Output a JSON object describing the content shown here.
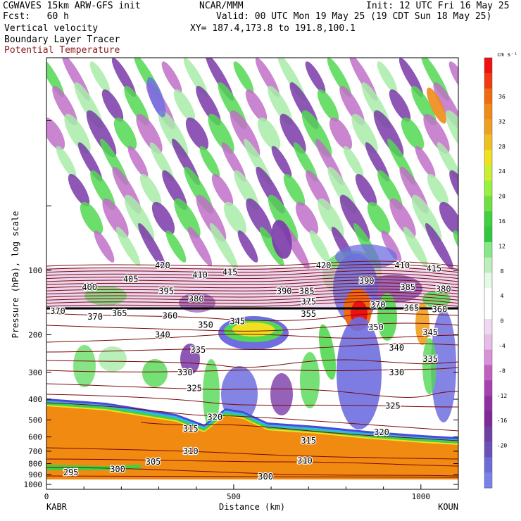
{
  "header": {
    "line1_left": "CGWAVES 15km ARW-GFS init",
    "line1_center": "NCAR/MMM",
    "line1_right": "Init: 12 UTC Fri 16 May 25",
    "line2_left": "Fcst:   60 h",
    "line2_right": "Valid: 00 UTC Mon 19 May 25 (19 CDT Sun 18 May 25)",
    "line3_left": "Vertical velocity",
    "line3_right": "XY= 187.4,173.8 to 191.8,100.1",
    "line4_left": "Boundary Layer Tracer",
    "line5_left": "Potential Temperature"
  },
  "colors": {
    "potential_temperature": "#7a0a0a",
    "theta_title": "#8b1a1a"
  },
  "chart_data": {
    "type": "heatmap",
    "xlabel": "Distance (km)",
    "ylabel": "Pressure (hPa), log scale",
    "x_ticks": [
      "0",
      "500",
      "1000"
    ],
    "x_tick_values": [
      0,
      500,
      1000
    ],
    "xlim": [
      0,
      1100
    ],
    "y_ticks": [
      "100",
      "200",
      "300",
      "400",
      "500",
      "600",
      "700",
      "800",
      "900",
      "1000"
    ],
    "y_tick_values": [
      100,
      200,
      300,
      400,
      500,
      600,
      700,
      800,
      900,
      1000
    ],
    "left_label": "KABR",
    "right_label": "KOUN",
    "colorbar": {
      "unit": "cm s⁻¹",
      "labels": [
        "36",
        "32",
        "28",
        "24",
        "20",
        "16",
        "12",
        "8",
        "4",
        "0",
        "-4",
        "-8",
        "-12",
        "-16",
        "-20"
      ],
      "colors": [
        "#f01010",
        "#f03a10",
        "#f06a10",
        "#f08a18",
        "#f0a020",
        "#f0c020",
        "#f0e020",
        "#c8f030",
        "#98f040",
        "#70e040",
        "#40d040",
        "#30c840",
        "#88e888",
        "#bcefbc",
        "#e6f8e6",
        "#ffffff",
        "#ffffff",
        "#f0d8f0",
        "#e8bce8",
        "#d890d8",
        "#c060c0",
        "#a840b0",
        "#9030a0",
        "#802898",
        "#7040a0",
        "#6a50b8",
        "#6c6cd8",
        "#7a82e8"
      ]
    },
    "contours": {
      "name": "Potential Temperature",
      "levels_shown": [
        295,
        300,
        305,
        310,
        315,
        320,
        325,
        330,
        335,
        340,
        345,
        350,
        355,
        360,
        365,
        370,
        375,
        380,
        385,
        390,
        395,
        400,
        405,
        410,
        415,
        420
      ],
      "labels": [
        {
          "text": "420",
          "x": 310,
          "p": 95
        },
        {
          "text": "420",
          "x": 740,
          "p": 95
        },
        {
          "text": "410",
          "x": 410,
          "p": 105
        },
        {
          "text": "415",
          "x": 490,
          "p": 102
        },
        {
          "text": "410",
          "x": 950,
          "p": 95
        },
        {
          "text": "415",
          "x": 1035,
          "p": 98
        },
        {
          "text": "405",
          "x": 225,
          "p": 110
        },
        {
          "text": "400",
          "x": 115,
          "p": 120
        },
        {
          "text": "395",
          "x": 320,
          "p": 125
        },
        {
          "text": "390",
          "x": 635,
          "p": 125
        },
        {
          "text": "385",
          "x": 695,
          "p": 125
        },
        {
          "text": "390",
          "x": 855,
          "p": 112
        },
        {
          "text": "385",
          "x": 965,
          "p": 120
        },
        {
          "text": "380",
          "x": 400,
          "p": 136
        },
        {
          "text": "380",
          "x": 1060,
          "p": 122
        },
        {
          "text": "375",
          "x": 700,
          "p": 140
        },
        {
          "text": "370",
          "x": 885,
          "p": 145
        },
        {
          "text": "370",
          "x": 30,
          "p": 155
        },
        {
          "text": "370",
          "x": 130,
          "p": 165
        },
        {
          "text": "365",
          "x": 195,
          "p": 159
        },
        {
          "text": "360",
          "x": 330,
          "p": 163
        },
        {
          "text": "365",
          "x": 975,
          "p": 150
        },
        {
          "text": "360",
          "x": 1050,
          "p": 152
        },
        {
          "text": "350",
          "x": 425,
          "p": 180
        },
        {
          "text": "345",
          "x": 510,
          "p": 173
        },
        {
          "text": "355",
          "x": 700,
          "p": 160
        },
        {
          "text": "350",
          "x": 880,
          "p": 185
        },
        {
          "text": "345",
          "x": 1025,
          "p": 195
        },
        {
          "text": "340",
          "x": 310,
          "p": 200
        },
        {
          "text": "340",
          "x": 935,
          "p": 230
        },
        {
          "text": "335",
          "x": 405,
          "p": 235
        },
        {
          "text": "335",
          "x": 1025,
          "p": 260
        },
        {
          "text": "330",
          "x": 370,
          "p": 300
        },
        {
          "text": "330",
          "x": 935,
          "p": 300
        },
        {
          "text": "325",
          "x": 395,
          "p": 355
        },
        {
          "text": "325",
          "x": 925,
          "p": 430
        },
        {
          "text": "320",
          "x": 450,
          "p": 485
        },
        {
          "text": "320",
          "x": 895,
          "p": 570
        },
        {
          "text": "315",
          "x": 385,
          "p": 550
        },
        {
          "text": "315",
          "x": 700,
          "p": 625
        },
        {
          "text": "310",
          "x": 385,
          "p": 700
        },
        {
          "text": "310",
          "x": 690,
          "p": 775
        },
        {
          "text": "305",
          "x": 285,
          "p": 785
        },
        {
          "text": "300",
          "x": 190,
          "p": 850
        },
        {
          "text": "300",
          "x": 585,
          "p": 920
        },
        {
          "text": "295",
          "x": 65,
          "p": 880
        }
      ]
    }
  }
}
